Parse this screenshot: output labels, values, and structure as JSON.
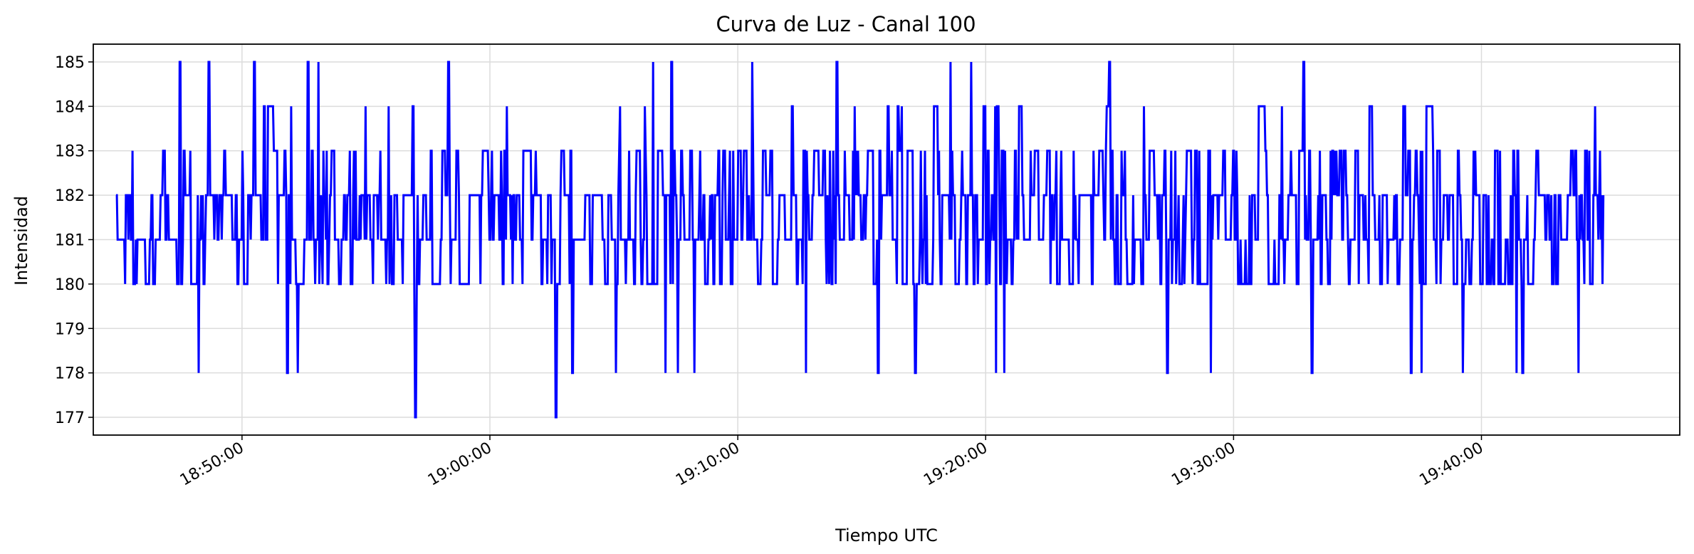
{
  "chart_data": {
    "type": "line",
    "title": "Curva de Luz - Canal 100",
    "xlabel": "Tiempo UTC",
    "ylabel": "Intensidad",
    "x_axis": "time",
    "xlim": [
      "18:44:00",
      "19:48:00"
    ],
    "ylim": [
      176.6,
      185.4
    ],
    "x_ticks": [
      "18:50:00",
      "19:00:00",
      "19:10:00",
      "19:20:00",
      "19:30:00",
      "19:40:00"
    ],
    "y_ticks": [
      177,
      178,
      179,
      180,
      181,
      182,
      183,
      184,
      185
    ],
    "grid": true,
    "series": [
      {
        "color": "#0000ff",
        "start": "18:44:55",
        "end": "19:44:55",
        "level_range": [
          177,
          185
        ],
        "typical_range": [
          180,
          184
        ],
        "center": 181.5,
        "notable_points": [
          {
            "x": "18:47:30",
            "y": 185
          },
          {
            "x": "18:48:15",
            "y": 178
          },
          {
            "x": "18:48:40",
            "y": 185
          },
          {
            "x": "18:50:30",
            "y": 185
          },
          {
            "x": "18:51:50",
            "y": 178
          },
          {
            "x": "18:52:15",
            "y": 178
          },
          {
            "x": "18:52:40",
            "y": 185
          },
          {
            "x": "18:53:05",
            "y": 185
          },
          {
            "x": "18:57:00",
            "y": 177
          },
          {
            "x": "18:58:20",
            "y": 185
          },
          {
            "x": "19:02:40",
            "y": 177
          },
          {
            "x": "19:03:20",
            "y": 178
          },
          {
            "x": "19:05:05",
            "y": 178
          },
          {
            "x": "19:06:35",
            "y": 185
          },
          {
            "x": "19:07:05",
            "y": 178
          },
          {
            "x": "19:07:20",
            "y": 185
          },
          {
            "x": "19:07:35",
            "y": 178
          },
          {
            "x": "19:08:15",
            "y": 178
          },
          {
            "x": "19:10:35",
            "y": 185
          },
          {
            "x": "19:12:45",
            "y": 178
          },
          {
            "x": "19:14:00",
            "y": 185
          },
          {
            "x": "19:15:40",
            "y": 178
          },
          {
            "x": "19:17:10",
            "y": 178
          },
          {
            "x": "19:18:35",
            "y": 185
          },
          {
            "x": "19:19:25",
            "y": 185
          },
          {
            "x": "19:20:25",
            "y": 178
          },
          {
            "x": "19:20:45",
            "y": 178
          },
          {
            "x": "19:25:00",
            "y": 185
          },
          {
            "x": "19:27:20",
            "y": 178
          },
          {
            "x": "19:29:05",
            "y": 178
          },
          {
            "x": "19:32:50",
            "y": 185
          },
          {
            "x": "19:33:10",
            "y": 178
          },
          {
            "x": "19:37:10",
            "y": 178
          },
          {
            "x": "19:37:35",
            "y": 178
          },
          {
            "x": "19:39:15",
            "y": 178
          },
          {
            "x": "19:41:25",
            "y": 178
          },
          {
            "x": "19:41:40",
            "y": 178
          },
          {
            "x": "19:43:55",
            "y": 178
          }
        ]
      }
    ]
  }
}
